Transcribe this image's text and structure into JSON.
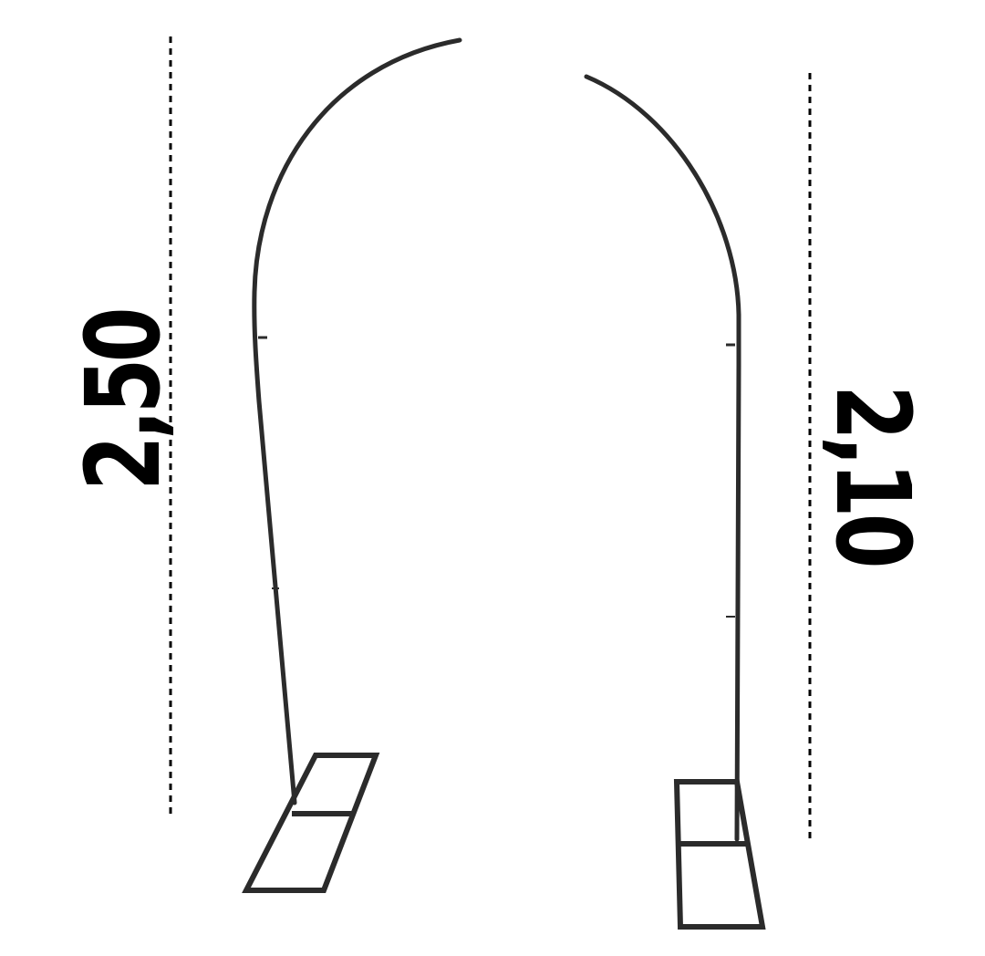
{
  "diagram": {
    "left_arch": {
      "height_label": "2,50"
    },
    "right_arch": {
      "height_label": "2,10"
    }
  },
  "colors": {
    "frame": "#2b2b2b",
    "dimension_line": "#000000",
    "background": "#ffffff"
  }
}
